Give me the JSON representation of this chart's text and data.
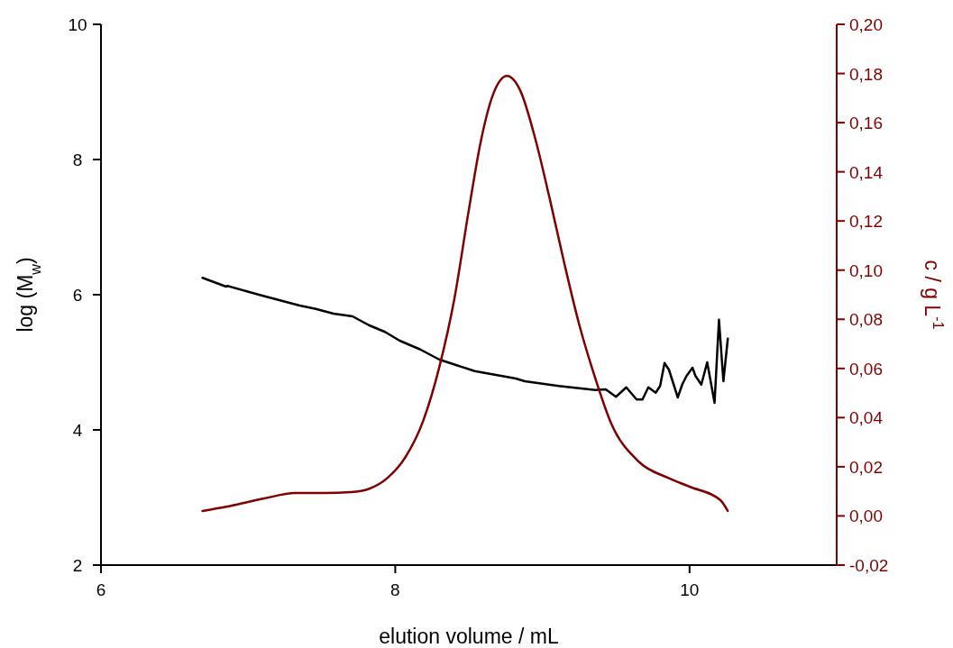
{
  "chart_data": {
    "type": "line",
    "xlabel": "elution volume / mL",
    "ylabel": "log (M$_{w}$)",
    "y2label": "c / g L$^{-1}$",
    "xlim": [
      6,
      11
    ],
    "xticks": [
      6,
      8,
      10
    ],
    "ylim": [
      2,
      10
    ],
    "yticks": [
      2,
      4,
      6,
      8,
      10
    ],
    "y2lim": [
      -0.02,
      0.2
    ],
    "y2ticks": [
      {
        "value": -0.02,
        "label": "-0,02"
      },
      {
        "value": 0,
        "label": "0,00"
      },
      {
        "value": 0.02,
        "label": "0,02"
      },
      {
        "value": 0.04,
        "label": "0,04"
      },
      {
        "value": 0.06,
        "label": "0,06"
      },
      {
        "value": 0.08,
        "label": "0,08"
      },
      {
        "value": 0.1,
        "label": "0,10"
      },
      {
        "value": 0.12,
        "label": "0,12"
      },
      {
        "value": 0.14,
        "label": "0,14"
      },
      {
        "value": 0.16,
        "label": "0,16"
      },
      {
        "value": 0.18,
        "label": "0,18"
      },
      {
        "value": 0.2,
        "label": "0,20"
      }
    ],
    "series": [
      {
        "color": "#000000",
        "x": [
          6.69,
          6.85,
          6.86,
          7.09,
          7.35,
          7.46,
          7.58,
          7.71,
          7.82,
          7.93,
          8.03,
          8.17,
          8.3,
          8.54,
          8.82,
          8.88,
          9.11,
          9.36,
          9.43,
          9.5,
          9.57,
          9.64,
          9.68,
          9.72,
          9.77,
          9.8,
          9.83,
          9.86,
          9.92,
          9.95,
          9.98,
          10.02,
          10.04,
          10.08,
          10.12,
          10.17,
          10.2,
          10.23,
          10.26
        ],
        "values": [
          6.25,
          6.12,
          6.13,
          5.99,
          5.84,
          5.79,
          5.72,
          5.68,
          5.55,
          5.45,
          5.32,
          5.19,
          5.04,
          4.87,
          4.76,
          4.72,
          4.65,
          4.59,
          4.6,
          4.49,
          4.63,
          4.45,
          4.45,
          4.63,
          4.55,
          4.65,
          4.99,
          4.89,
          4.48,
          4.67,
          4.8,
          4.92,
          4.8,
          4.67,
          5.0,
          4.4,
          5.63,
          4.72,
          5.35
        ]
      },
      {
        "color": "#800000",
        "axis": "y2",
        "x": [
          6.69,
          6.86,
          7.11,
          7.32,
          7.52,
          7.7,
          7.82,
          7.95,
          8.07,
          8.19,
          8.3,
          8.4,
          8.5,
          8.58,
          8.66,
          8.76,
          8.85,
          8.95,
          9.05,
          9.15,
          9.25,
          9.36,
          9.46,
          9.66,
          9.85,
          10.0,
          10.21,
          10.26
        ],
        "values": [
          0.002,
          0.0038,
          0.0071,
          0.0093,
          0.0093,
          0.0097,
          0.011,
          0.0156,
          0.024,
          0.0387,
          0.0607,
          0.0878,
          0.1245,
          0.152,
          0.1707,
          0.179,
          0.173,
          0.1538,
          0.129,
          0.1025,
          0.0779,
          0.0559,
          0.0387,
          0.0218,
          0.0156,
          0.0119,
          0.0064,
          0.002
        ]
      }
    ]
  }
}
